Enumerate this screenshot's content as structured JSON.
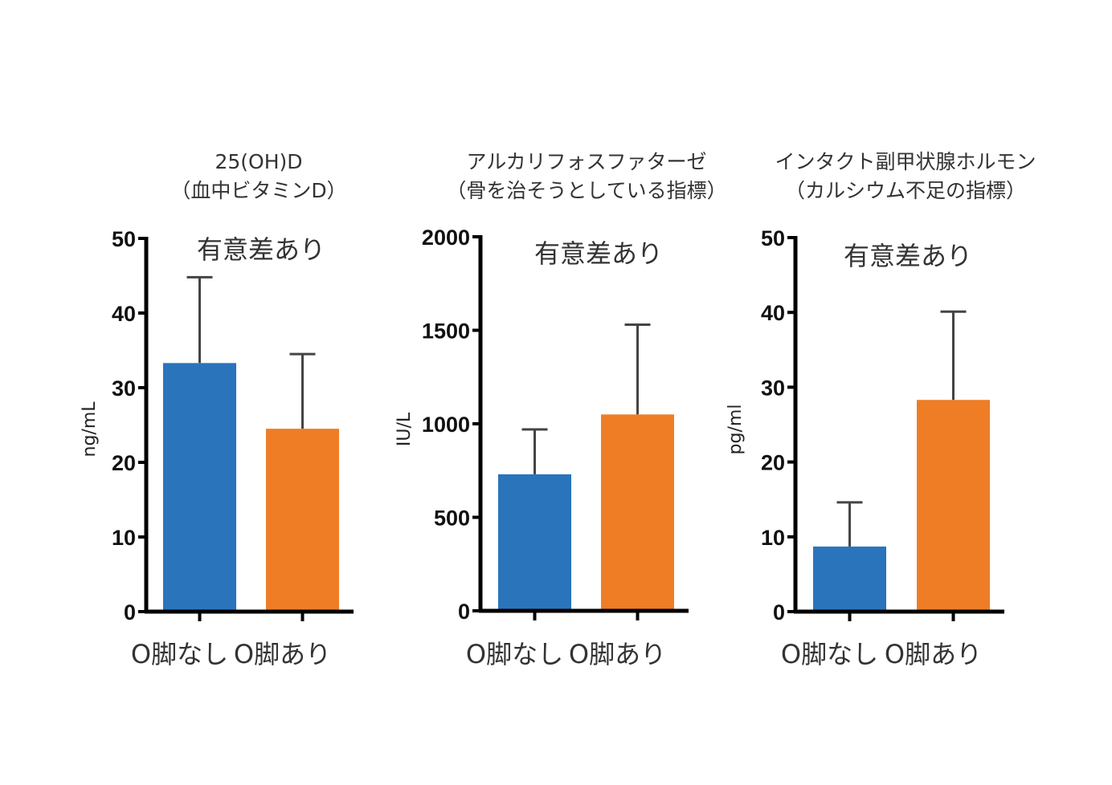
{
  "chart_data": [
    {
      "type": "bar",
      "title": [
        "25(OH)D",
        "（血中ビタミンD）"
      ],
      "annotation": "有意差あり",
      "ylabel": "ng/mL",
      "ylim": [
        0,
        50
      ],
      "yticks": [
        0,
        10,
        20,
        30,
        40,
        50
      ],
      "categories": [
        "O脚なし",
        "O脚あり"
      ],
      "values": [
        33.3,
        24.5
      ],
      "error_upper": [
        44.8,
        34.5
      ],
      "colors": [
        "#2a74bc",
        "#ee7d26"
      ]
    },
    {
      "type": "bar",
      "title": [
        "アルカリフォスファターゼ",
        "（骨を治そうとしている指標）"
      ],
      "annotation": "有意差あり",
      "ylabel": "IU/L",
      "ylim": [
        0,
        2000
      ],
      "yticks": [
        0,
        500,
        1000,
        1500,
        2000
      ],
      "categories": [
        "O脚なし",
        "O脚あり"
      ],
      "values": [
        730,
        1050
      ],
      "error_upper": [
        970,
        1530
      ],
      "colors": [
        "#2a74bc",
        "#ee7d26"
      ]
    },
    {
      "type": "bar",
      "title": [
        "インタクト副甲状腺ホルモン",
        "（カルシウム不足の指標）"
      ],
      "annotation": "有意差あり",
      "ylabel": "pg/ml",
      "ylim": [
        0,
        50
      ],
      "yticks": [
        0,
        10,
        20,
        30,
        40,
        50
      ],
      "categories": [
        "O脚なし",
        "O脚あり"
      ],
      "values": [
        8.7,
        28.3
      ],
      "error_upper": [
        14.6,
        40.1
      ],
      "colors": [
        "#2a74bc",
        "#ee7d26"
      ]
    }
  ]
}
